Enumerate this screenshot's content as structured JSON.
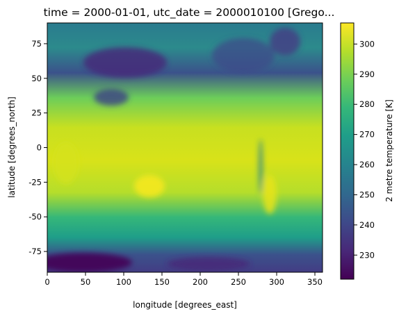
{
  "chart_data": {
    "type": "heatmap",
    "title": "time = 2000-01-01, utc_date = 2000010100 [Grego...",
    "xlabel": "longitude [degrees_east]",
    "ylabel": "latitude [degrees_north]",
    "xlim": [
      0,
      360
    ],
    "ylim": [
      -90,
      90
    ],
    "x_ticks": [
      0,
      50,
      100,
      150,
      200,
      250,
      300,
      350
    ],
    "y_ticks": [
      -75,
      -50,
      -25,
      0,
      25,
      50,
      75
    ],
    "colorbar": {
      "label": "2 metre temperature [K]",
      "range": [
        222,
        307
      ],
      "ticks": [
        230,
        240,
        250,
        260,
        270,
        280,
        290,
        300
      ],
      "colormap": "viridis",
      "colors": [
        "#440154",
        "#482878",
        "#3e4989",
        "#31688e",
        "#26828e",
        "#1f9e89",
        "#35b779",
        "#6ece58",
        "#b5de2b",
        "#fde725"
      ]
    },
    "grid": false,
    "description_field": "Global 2 m temperature field on a lon/lat grid"
  }
}
